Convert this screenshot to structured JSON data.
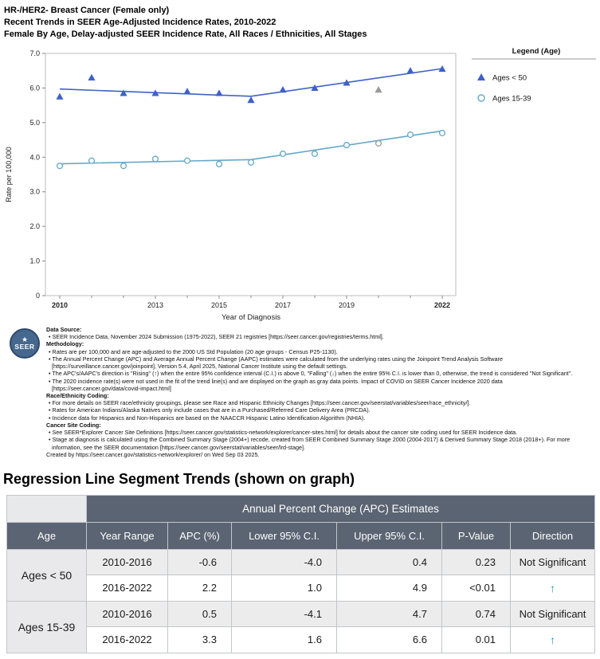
{
  "header": {
    "line1": "HR-/HER2- Breast Cancer (Female only)",
    "line2": "Recent Trends in SEER Age-Adjusted Incidence Rates, 2010-2022",
    "line3": "Female By Age, Delay-adjusted SEER Incidence Rate, All Races / Ethnicities, All Stages"
  },
  "chart_data": {
    "type": "scatter",
    "xlabel": "Year of Diagnosis",
    "ylabel": "Rate per 100,000",
    "ylim": [
      0,
      7
    ],
    "y_ticks": [
      0,
      1,
      2,
      3,
      4,
      5,
      6,
      7
    ],
    "x_ticks": [
      2010,
      2013,
      2015,
      2017,
      2019,
      2022
    ],
    "x_bold_ticks": [
      2010,
      2022
    ],
    "years": [
      2010,
      2011,
      2012,
      2013,
      2014,
      2015,
      2016,
      2017,
      2018,
      2019,
      2020,
      2021,
      2022
    ],
    "covid_gray_year": 2020,
    "covid_gray_color": "#9a9a9a",
    "legend": {
      "title": "Legend (Age)",
      "position": "right"
    },
    "series": [
      {
        "name": "Ages < 50",
        "marker": "triangle",
        "color": "#3e62c9",
        "values": [
          5.75,
          6.3,
          5.85,
          5.85,
          5.9,
          5.85,
          5.65,
          5.95,
          6.0,
          6.15,
          5.95,
          6.5,
          6.55
        ],
        "trend": [
          [
            2010,
            5.97
          ],
          [
            2016,
            5.76
          ],
          [
            2022,
            6.56
          ]
        ]
      },
      {
        "name": "Ages 15-39",
        "marker": "circle",
        "color": "#63a8c9",
        "values": [
          3.75,
          3.9,
          3.75,
          3.95,
          3.9,
          3.8,
          3.85,
          4.1,
          4.1,
          4.35,
          4.4,
          4.65,
          4.7
        ],
        "trend": [
          [
            2010,
            3.81
          ],
          [
            2016,
            3.93
          ],
          [
            2022,
            4.76
          ]
        ]
      }
    ]
  },
  "footnotes": {
    "logo_text": "SEER",
    "lines": [
      {
        "text": "Data Source:",
        "bold": true
      },
      {
        "text": "• SEER Incidence Data, November 2024 Submission (1975-2022), SEER 21 registries [https://seer.cancer.gov/registries/terms.html]."
      },
      {
        "text": "Methodology:",
        "bold": true
      },
      {
        "text": "• Rates are per 100,000 and are age-adjusted to the 2000 US Std Population (20 age groups - Census P25-1130)."
      },
      {
        "text": "• The Annual Percent Change (APC) and Average Annual Percent Change (AAPC) estimates were calculated from the underlying rates using the Joinpoint Trend Analysis Software [https://surveillance.cancer.gov/joinpoint], Version 5.4, April 2025, National Cancer Institute using the default settings."
      },
      {
        "text": "• The APC's/AAPC's direction is \"Rising\" (↑) when the entire 95% confidence interval (C.I.) is above 0, \"Falling\" (↓) when the entire 95% C.I. is lower than 0, otherwise, the trend is considered \"Not Significant\"."
      },
      {
        "text": "• The 2020 incidence rate(s) were not used in the fit of the trend line(s) and are displayed on the graph as gray data points. Impact of COVID on SEER Cancer Incidence 2020 data [https://seer.cancer.gov/data/covid-impact.html]"
      },
      {
        "text": "Race/Ethnicity Coding:",
        "bold": true
      },
      {
        "text": "• For more details on SEER race/ethnicity groupings, please see Race and Hispanic Ethnicity Changes [https://seer.cancer.gov/seerstat/variables/seer/race_ethnicity/]."
      },
      {
        "text": "• Rates for American Indians/Alaska Natives only include cases that are in a Purchased/Referred Care Delivery Area (PRCDA)."
      },
      {
        "text": "• Incidence data for Hispanics and Non-Hispanics are based on the NAACCR Hispanic Latino Identification Algorithm (NHIA)."
      },
      {
        "text": "Cancer Site Coding:",
        "bold": true
      },
      {
        "text": "• See SEER*Explorer Cancer Site Definitions [https://seer.cancer.gov/statistics-network/explorer/cancer-sites.html] for details about the cancer site coding used for SEER Incidence data."
      },
      {
        "text": "• Stage at diagnosis is calculated using the Combined Summary Stage (2004+) recode, created from SEER Combined Summary Stage 2000 (2004-2017) & Derived Summary Stage 2018 (2018+). For more information, see the SEER documentation [https://seer.cancer.gov/seerstat/variables/seer/lrd-stage]."
      },
      {
        "text": "Created by https://seer.cancer.gov/statistics-network/explorer/ on Wed Sep 03 2025."
      }
    ]
  },
  "trends": {
    "heading": "Regression Line Segment Trends (shown on graph)",
    "span_header": "Annual Percent Change (APC) Estimates",
    "arrow_color": "#2596be",
    "columns": {
      "age": "Age",
      "year_range": "Year Range",
      "apc": "APC (%)",
      "lower": "Lower 95% C.I.",
      "upper": "Upper 95% C.I.",
      "p_value": "P-Value",
      "direction": "Direction"
    },
    "rows": [
      {
        "age": "Ages < 50",
        "year_range": "2010-2016",
        "apc": "-0.6",
        "lower": "-4.0",
        "upper": "0.4",
        "p_value": "0.23",
        "direction": "Not Significant"
      },
      {
        "age": "",
        "year_range": "2016-2022",
        "apc": "2.2",
        "lower": "1.0",
        "upper": "4.9",
        "p_value": "<0.01",
        "direction": "↑"
      },
      {
        "age": "Ages 15-39",
        "year_range": "2010-2016",
        "apc": "0.5",
        "lower": "-4.1",
        "upper": "4.7",
        "p_value": "0.74",
        "direction": "Not Significant"
      },
      {
        "age": "",
        "year_range": "2016-2022",
        "apc": "3.3",
        "lower": "1.6",
        "upper": "6.6",
        "p_value": "0.01",
        "direction": "↑"
      }
    ]
  }
}
